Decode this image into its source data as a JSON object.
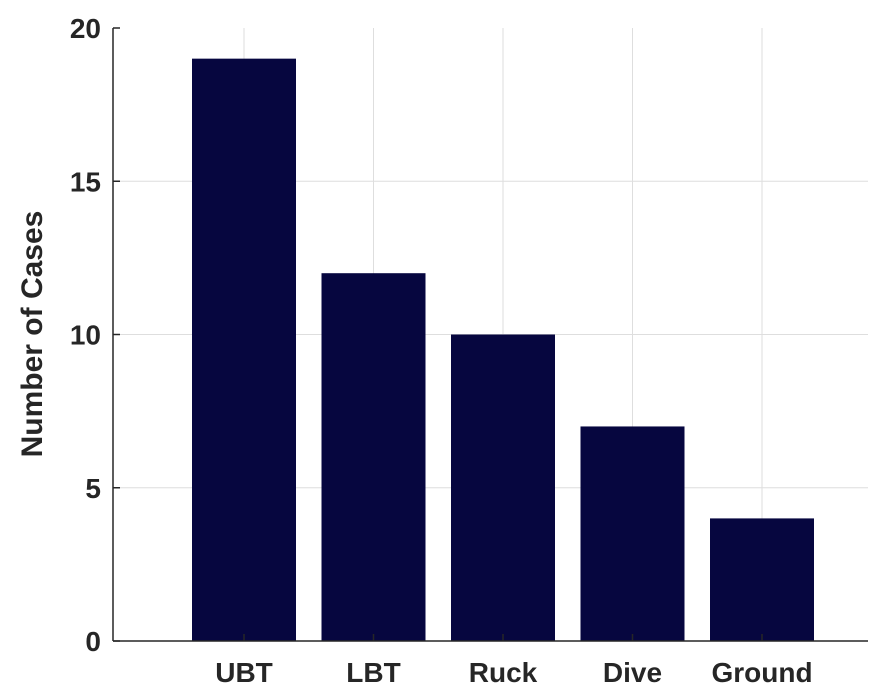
{
  "chart_data": {
    "type": "bar",
    "title": "",
    "xlabel": "",
    "ylabel": "Number of Cases",
    "categories": [
      "UBT",
      "LBT",
      "Ruck",
      "Dive",
      "Ground"
    ],
    "values": [
      19,
      12,
      10,
      7,
      4
    ],
    "ylim": [
      0,
      20
    ],
    "yticks": [
      0,
      5,
      10,
      15,
      20
    ],
    "grid": true,
    "legend": "none",
    "colors": {
      "bar": "#06063f",
      "grid": "#dedede",
      "axis": "#262626",
      "background": "#ffffff"
    }
  }
}
